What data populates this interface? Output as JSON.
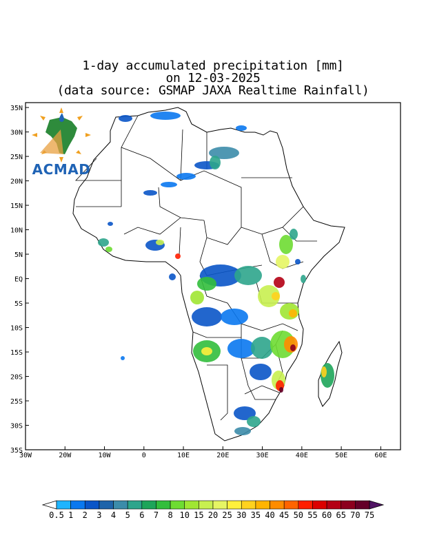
{
  "title": {
    "line1": "1-day accumulated precipitation [mm]",
    "line2": "on 12-03-2025",
    "line3": "(data source: GSMAP JAXA Realtime Rainfall)"
  },
  "logo": {
    "text": "ACMAD"
  },
  "axes": {
    "lat_labels": [
      "35N",
      "30N",
      "25N",
      "20N",
      "15N",
      "10N",
      "5N",
      "EQ",
      "5S",
      "10S",
      "15S",
      "20S",
      "25S",
      "30S",
      "35S"
    ],
    "lat_values": [
      35,
      30,
      25,
      20,
      15,
      10,
      5,
      0,
      -5,
      -10,
      -15,
      -20,
      -25,
      -30,
      -35
    ],
    "lon_labels": [
      "30W",
      "20W",
      "10W",
      "0",
      "10E",
      "20E",
      "30E",
      "40E",
      "50E",
      "60E"
    ],
    "lon_values": [
      -30,
      -20,
      -10,
      0,
      10,
      20,
      30,
      40,
      50,
      60
    ],
    "lon_range": [
      -30,
      65
    ],
    "lat_range": [
      -35,
      36
    ]
  },
  "colorbar": {
    "labels": [
      "0.5",
      "1",
      "2",
      "3",
      "4",
      "5",
      "6",
      "7",
      "8",
      "10",
      "15",
      "20",
      "25",
      "30",
      "35",
      "40",
      "45",
      "50",
      "55",
      "60",
      "65",
      "70",
      "75"
    ],
    "colors": [
      "#ffffff",
      "#1eb4ff",
      "#0a78f0",
      "#0a55c8",
      "#1e64aa",
      "#3c8caa",
      "#2da58c",
      "#1ea55a",
      "#32be3c",
      "#6edc32",
      "#a0e632",
      "#c8f050",
      "#e6f564",
      "#fff03c",
      "#ffd21e",
      "#ffb400",
      "#ff8c00",
      "#ff6400",
      "#ff1e00",
      "#dc0000",
      "#b40014",
      "#8c001e",
      "#640028",
      "#501464"
    ]
  }
}
